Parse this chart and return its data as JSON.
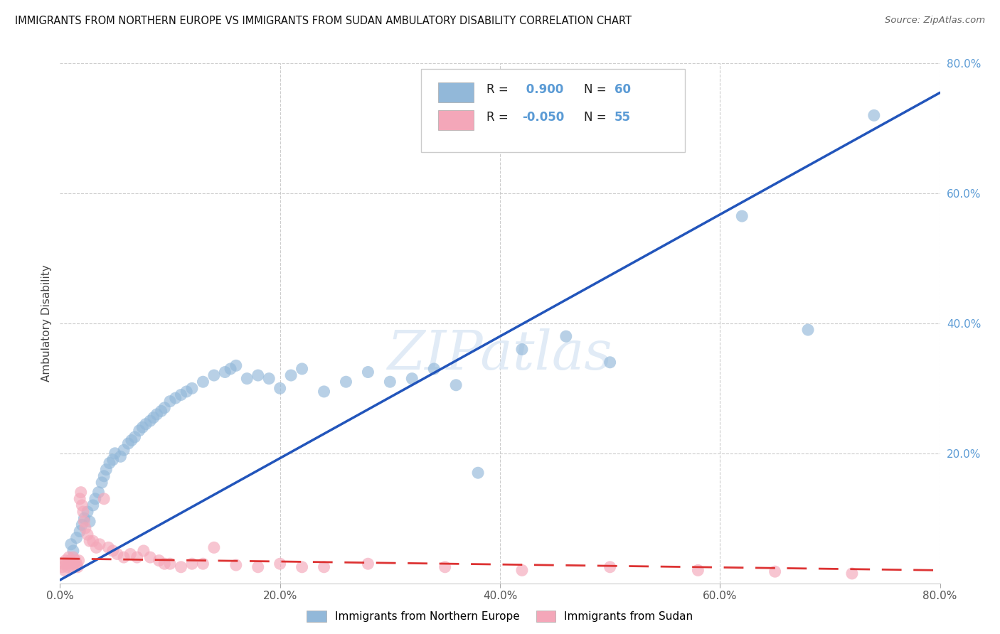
{
  "title": "IMMIGRANTS FROM NORTHERN EUROPE VS IMMIGRANTS FROM SUDAN AMBULATORY DISABILITY CORRELATION CHART",
  "source": "Source: ZipAtlas.com",
  "ylabel": "Ambulatory Disability",
  "xlim": [
    0,
    0.8
  ],
  "ylim": [
    0,
    0.8
  ],
  "xtick_vals": [
    0.0,
    0.2,
    0.4,
    0.6,
    0.8
  ],
  "xtick_labels": [
    "0.0%",
    "20.0%",
    "40.0%",
    "60.0%",
    "80.0%"
  ],
  "ytick_vals": [
    0.2,
    0.4,
    0.6,
    0.8
  ],
  "ytick_labels": [
    "20.0%",
    "40.0%",
    "60.0%",
    "80.0%"
  ],
  "legend_bottom": [
    "Immigrants from Northern Europe",
    "Immigrants from Sudan"
  ],
  "R_blue": "0.900",
  "N_blue": "60",
  "R_pink": "-0.050",
  "N_pink": "55",
  "blue_color": "#92b8d9",
  "pink_color": "#f4a7b9",
  "blue_line_color": "#2255bb",
  "pink_line_color": "#dd3333",
  "watermark": "ZIPatlas",
  "blue_trend_x": [
    0.0,
    0.8
  ],
  "blue_trend_y": [
    0.005,
    0.755
  ],
  "pink_trend_x": [
    0.0,
    0.8
  ],
  "pink_trend_y": [
    0.038,
    0.02
  ],
  "blue_scatter_x": [
    0.01,
    0.012,
    0.015,
    0.018,
    0.02,
    0.022,
    0.025,
    0.027,
    0.03,
    0.032,
    0.035,
    0.038,
    0.04,
    0.042,
    0.045,
    0.048,
    0.05,
    0.055,
    0.058,
    0.062,
    0.065,
    0.068,
    0.072,
    0.075,
    0.078,
    0.082,
    0.085,
    0.088,
    0.092,
    0.095,
    0.1,
    0.105,
    0.11,
    0.115,
    0.12,
    0.13,
    0.14,
    0.15,
    0.155,
    0.16,
    0.17,
    0.18,
    0.19,
    0.2,
    0.21,
    0.22,
    0.24,
    0.26,
    0.28,
    0.3,
    0.32,
    0.34,
    0.36,
    0.38,
    0.42,
    0.46,
    0.5,
    0.62,
    0.68,
    0.74
  ],
  "blue_scatter_y": [
    0.06,
    0.05,
    0.07,
    0.08,
    0.09,
    0.1,
    0.11,
    0.095,
    0.12,
    0.13,
    0.14,
    0.155,
    0.165,
    0.175,
    0.185,
    0.19,
    0.2,
    0.195,
    0.205,
    0.215,
    0.22,
    0.225,
    0.235,
    0.24,
    0.245,
    0.25,
    0.255,
    0.26,
    0.265,
    0.27,
    0.28,
    0.285,
    0.29,
    0.295,
    0.3,
    0.31,
    0.32,
    0.325,
    0.33,
    0.335,
    0.315,
    0.32,
    0.315,
    0.3,
    0.32,
    0.33,
    0.295,
    0.31,
    0.325,
    0.31,
    0.315,
    0.33,
    0.305,
    0.17,
    0.36,
    0.38,
    0.34,
    0.565,
    0.39,
    0.72
  ],
  "pink_scatter_x": [
    0.002,
    0.003,
    0.004,
    0.005,
    0.006,
    0.007,
    0.008,
    0.009,
    0.01,
    0.011,
    0.012,
    0.013,
    0.014,
    0.015,
    0.016,
    0.017,
    0.018,
    0.019,
    0.02,
    0.021,
    0.022,
    0.023,
    0.025,
    0.027,
    0.03,
    0.033,
    0.036,
    0.04,
    0.044,
    0.048,
    0.052,
    0.058,
    0.064,
    0.07,
    0.076,
    0.082,
    0.09,
    0.095,
    0.1,
    0.11,
    0.12,
    0.13,
    0.14,
    0.16,
    0.18,
    0.2,
    0.22,
    0.24,
    0.28,
    0.35,
    0.42,
    0.5,
    0.58,
    0.65,
    0.72
  ],
  "pink_scatter_y": [
    0.025,
    0.03,
    0.02,
    0.035,
    0.03,
    0.025,
    0.04,
    0.035,
    0.03,
    0.025,
    0.04,
    0.03,
    0.035,
    0.03,
    0.025,
    0.035,
    0.13,
    0.14,
    0.12,
    0.11,
    0.095,
    0.085,
    0.075,
    0.065,
    0.065,
    0.055,
    0.06,
    0.13,
    0.055,
    0.05,
    0.045,
    0.04,
    0.045,
    0.04,
    0.05,
    0.04,
    0.035,
    0.03,
    0.03,
    0.025,
    0.03,
    0.03,
    0.055,
    0.028,
    0.025,
    0.03,
    0.025,
    0.025,
    0.03,
    0.025,
    0.02,
    0.025,
    0.02,
    0.018,
    0.015
  ]
}
